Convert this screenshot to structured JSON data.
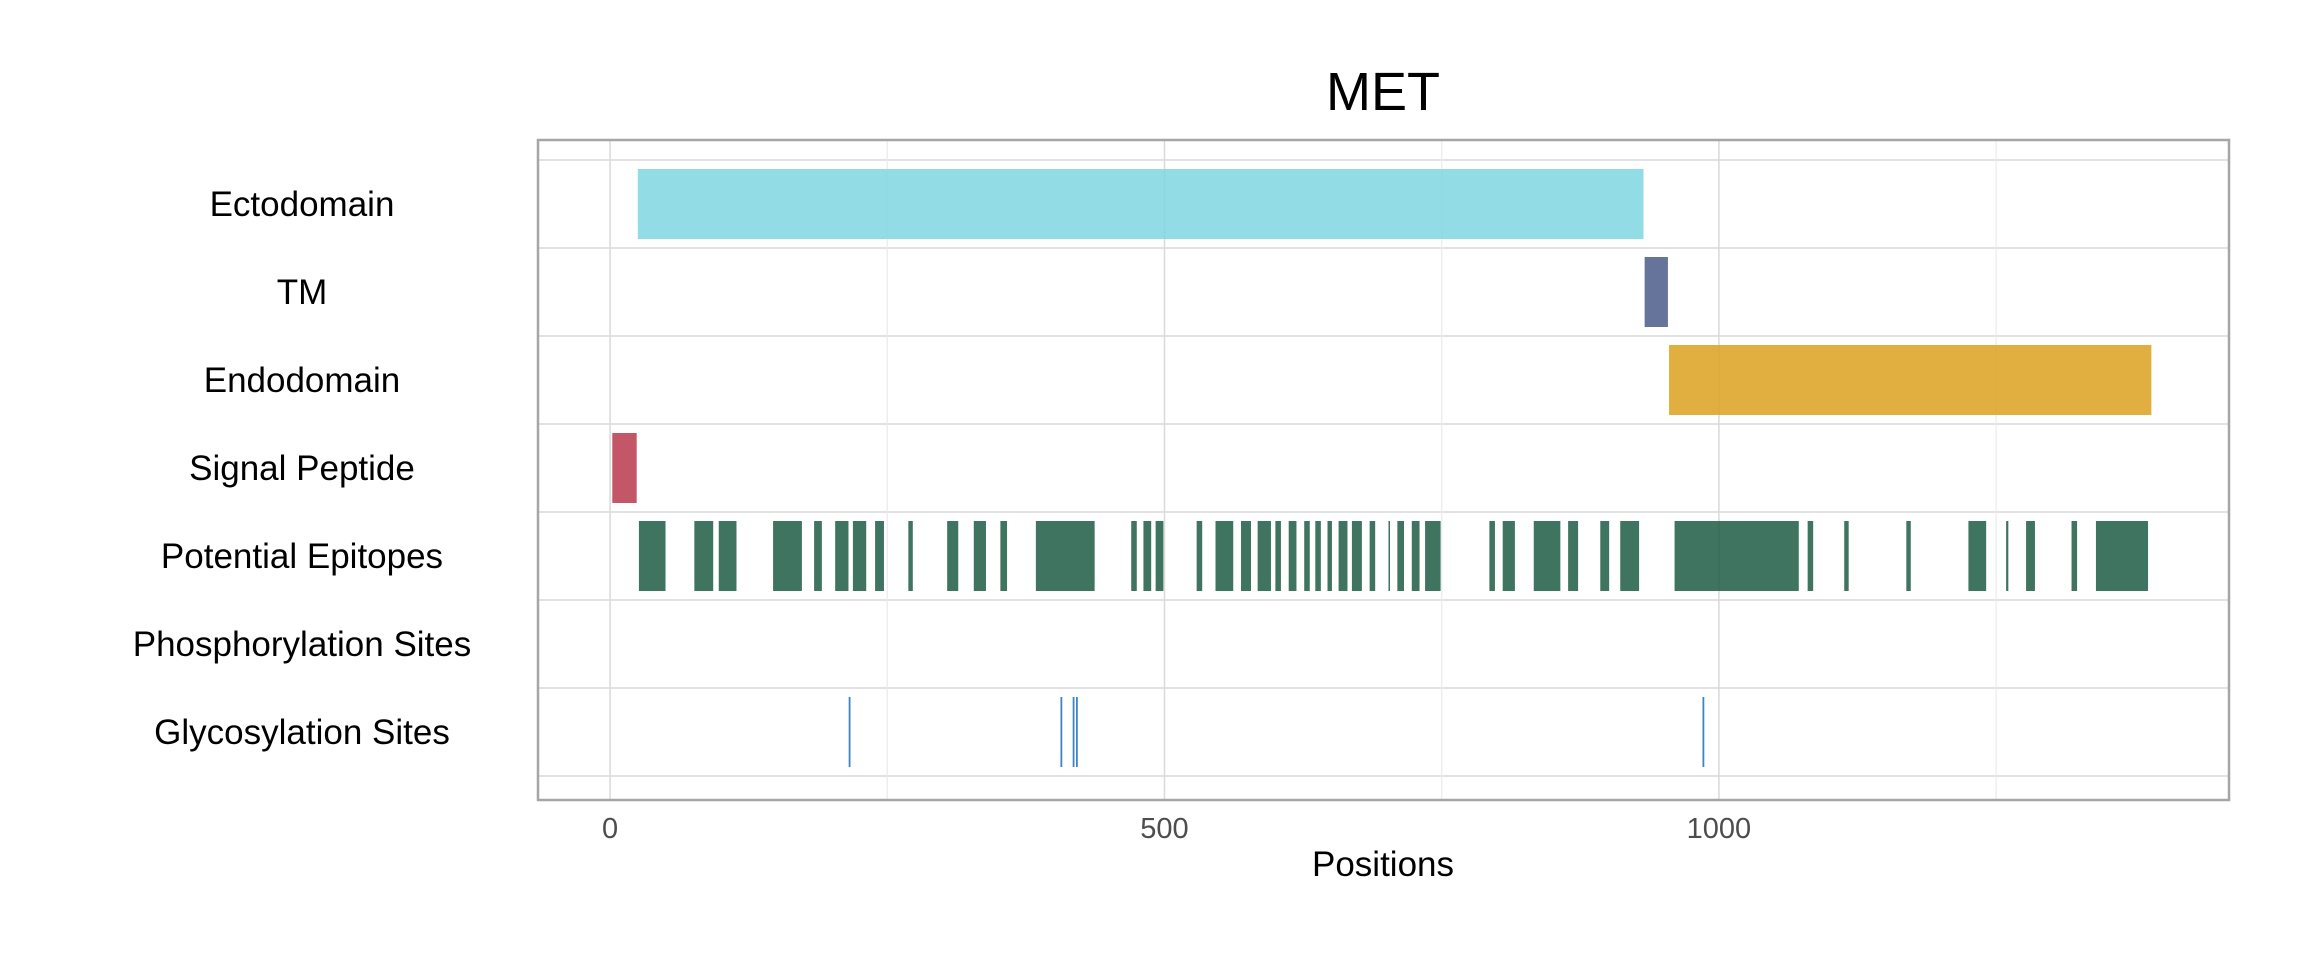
{
  "chart_data": {
    "type": "bar",
    "title": "MET",
    "xlabel": "Positions",
    "ylabel": "",
    "xlim": [
      -65,
      1460
    ],
    "x_ticks": [
      0,
      500,
      1000
    ],
    "x_tick_labels": [
      "0",
      "500",
      "1000"
    ],
    "grid": true,
    "categories": [
      "Ectodomain",
      "TM",
      "Endodomain",
      "Signal Peptide",
      "Potential Epitopes",
      "Phosphorylation Sites",
      "Glycosylation Sites"
    ],
    "series": [
      {
        "category": "Ectodomain",
        "color": "#7fd6e0",
        "segments": [
          [
            25,
            932
          ]
        ]
      },
      {
        "category": "TM",
        "color": "#4b5a8a",
        "segments": [
          [
            933,
            954
          ]
        ]
      },
      {
        "category": "Endodomain",
        "color": "#dba11e",
        "segments": [
          [
            955,
            1390
          ]
        ]
      },
      {
        "category": "Signal Peptide",
        "color": "#b8394c",
        "segments": [
          [
            2,
            24
          ]
        ]
      },
      {
        "category": "Potential Epitopes",
        "color": "#1d5c44",
        "segments": [
          [
            26,
            50
          ],
          [
            76,
            93
          ],
          [
            98,
            114
          ],
          [
            147,
            173
          ],
          [
            184,
            191
          ],
          [
            203,
            215
          ],
          [
            219,
            231
          ],
          [
            239,
            247
          ],
          [
            269,
            273
          ],
          [
            304,
            314
          ],
          [
            328,
            339
          ],
          [
            352,
            358
          ],
          [
            384,
            437
          ],
          [
            470,
            475
          ],
          [
            481,
            488
          ],
          [
            492,
            499
          ],
          [
            529,
            534
          ],
          [
            546,
            562
          ],
          [
            569,
            578
          ],
          [
            584,
            596
          ],
          [
            600,
            605
          ],
          [
            612,
            619
          ],
          [
            626,
            631
          ],
          [
            636,
            641
          ],
          [
            647,
            651
          ],
          [
            657,
            665
          ],
          [
            669,
            678
          ],
          [
            685,
            690
          ],
          [
            702,
            703
          ],
          [
            710,
            716
          ],
          [
            723,
            730
          ],
          [
            735,
            749
          ],
          [
            793,
            798
          ],
          [
            805,
            816
          ],
          [
            833,
            857
          ],
          [
            864,
            873
          ],
          [
            893,
            901
          ],
          [
            911,
            928
          ],
          [
            960,
            1072
          ],
          [
            1080,
            1085
          ],
          [
            1113,
            1117
          ],
          [
            1169,
            1173
          ],
          [
            1225,
            1241
          ],
          [
            1259,
            1261
          ],
          [
            1277,
            1285
          ],
          [
            1318,
            1323
          ],
          [
            1340,
            1387
          ]
        ]
      },
      {
        "category": "Phosphorylation Sites",
        "color": "#1d5c44",
        "segments": []
      },
      {
        "category": "Glycosylation Sites",
        "color": "#3d85c6",
        "sites": [
          216,
          407,
          418,
          421,
          986
        ]
      }
    ]
  }
}
